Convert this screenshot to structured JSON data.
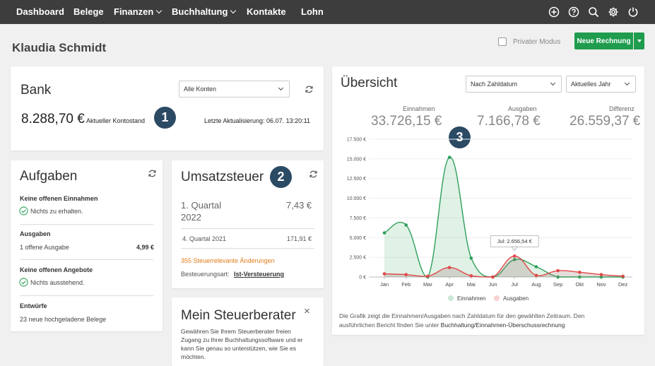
{
  "nav": {
    "items": [
      "Dashboard",
      "Belege",
      "Finanzen",
      "Buchhaltung",
      "Kontakte",
      "Lohn"
    ],
    "icons": [
      "plus-circle-icon",
      "help-icon",
      "search-icon",
      "gear-icon",
      "power-icon"
    ],
    "background": "#3d3d3d"
  },
  "page": {
    "title": "Klaudia Schmidt",
    "private_mode": "Privater Modus",
    "new_invoice": "Neue Rechnung",
    "accent": "#1f9c4e"
  },
  "bank": {
    "title": "Bank",
    "account_select": "Alle Konten",
    "balance": "8.288,70 €",
    "balance_label": "Aktueller Kontostand",
    "last_update": "Letzte Aktualisierung: 06.07.  13:20:11",
    "badge": "1"
  },
  "aufgaben": {
    "title": "Aufgaben",
    "einnahmen_head": "Keine offenen Einnahmen",
    "einnahmen_text": "Nichts zu erhalten.",
    "ausgaben_head": "Ausgaben",
    "ausgaben_text": "1  offene Ausgabe",
    "ausgaben_amount": "4,99 €",
    "angebote_head": "Keine offenen Angebote",
    "angebote_text": "Nichts ausstehend.",
    "entwuerfe_head": "Entwürfe",
    "entwuerfe_text": "23  neue hochgeladene Belege"
  },
  "ust": {
    "title": "Umsatzsteuer",
    "badge": "2",
    "q1_label": "1. Quartal",
    "q1_year": "2022",
    "q1_amount": "7,43 €",
    "q4_label": "4. Quartal 2021",
    "q4_amount": "171,91 €",
    "changes": "355 Steuerrelevante Änderungen",
    "art_label": "Besteuerungsart:",
    "art_value": "Ist-Versteuerung"
  },
  "berater": {
    "title": "Mein Steuerberater",
    "text": [
      "Gewähren Sie Ihrem Steuerberater freien",
      "Zugang zu Ihrer Buchhaltungssoftware und er",
      "kann Sie genau so unterstützen,  wie Sie es",
      "möchten."
    ]
  },
  "uebersicht": {
    "title": "Übersicht",
    "select_date": "Nach Zahldatum",
    "select_year": "Aktuelles Jahr",
    "badge": "3",
    "einnahmen_label": "Einnahmen",
    "einnahmen_value": "33.726,15 €",
    "ausgaben_label": "Ausgaben",
    "ausgaben_value": "7.166,78 €",
    "differenz_label": "Differenz",
    "differenz_value": "26.559,37 €",
    "tooltip": "Jul: 2.656,54 €",
    "footer_1": "Die Grafik zeigt die Einnahmen/Ausgaben nach Zahldatum für den gewählten Zeitraum. Den",
    "footer_2a": "ausführlichen Bericht finden Sie unter ",
    "footer_2b": "Buchhaltung/Einnahmen-Überschussrechnung"
  },
  "chart_data": {
    "type": "area",
    "categories": [
      "Jan",
      "Feb",
      "Mar",
      "Apr",
      "Mai",
      "Jun",
      "Jul",
      "Aug",
      "Sep",
      "Okt",
      "Nov",
      "Dez"
    ],
    "y_ticks": [
      "17.500 €",
      "15.000 €",
      "12.500 €",
      "10.000 €",
      "7.500 €",
      "5.000 €",
      "2.500 €",
      "0 €"
    ],
    "ylim": [
      0,
      17500
    ],
    "legend_position": "bottom",
    "series": [
      {
        "name": "Einnahmen",
        "color": "#2ea05a",
        "fill": "rgba(46,160,90,0.15)",
        "values": [
          5600,
          6600,
          0,
          15200,
          2400,
          0,
          2200,
          1300,
          0,
          0,
          0,
          0
        ]
      },
      {
        "name": "Ausgaben",
        "color": "#e04848",
        "fill": "rgba(150,120,110,0.25)",
        "values": [
          400,
          300,
          100,
          1200,
          150,
          0,
          2656.54,
          200,
          800,
          600,
          300,
          100
        ]
      }
    ]
  }
}
